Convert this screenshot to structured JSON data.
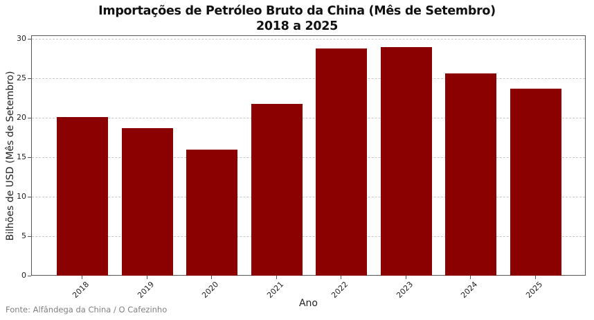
{
  "chart_data": {
    "type": "bar",
    "title": "Importações de Petróleo Bruto da China (Mês de Setembro)\n2018 a 2025",
    "title_lines": [
      "Importações de Petróleo Bruto da China (Mês de Setembro)",
      "2018 a 2025"
    ],
    "xlabel": "Ano",
    "ylabel": "Bilhões de USD (Mês de Setembro)",
    "categories": [
      "2018",
      "2019",
      "2020",
      "2021",
      "2022",
      "2023",
      "2024",
      "2025"
    ],
    "values": [
      20.2,
      18.8,
      16.05,
      21.8,
      28.9,
      29.0,
      25.7,
      23.8
    ],
    "ylim": [
      0,
      30.4
    ],
    "yticks": [
      0,
      5,
      10,
      15,
      20,
      25,
      30
    ],
    "grid": "horizontal dashed",
    "bar_color": "#8b0000",
    "legend": null,
    "x_tick_rotation": 45
  },
  "source": "Fonte: Alfândega da China / O Cafezinho"
}
